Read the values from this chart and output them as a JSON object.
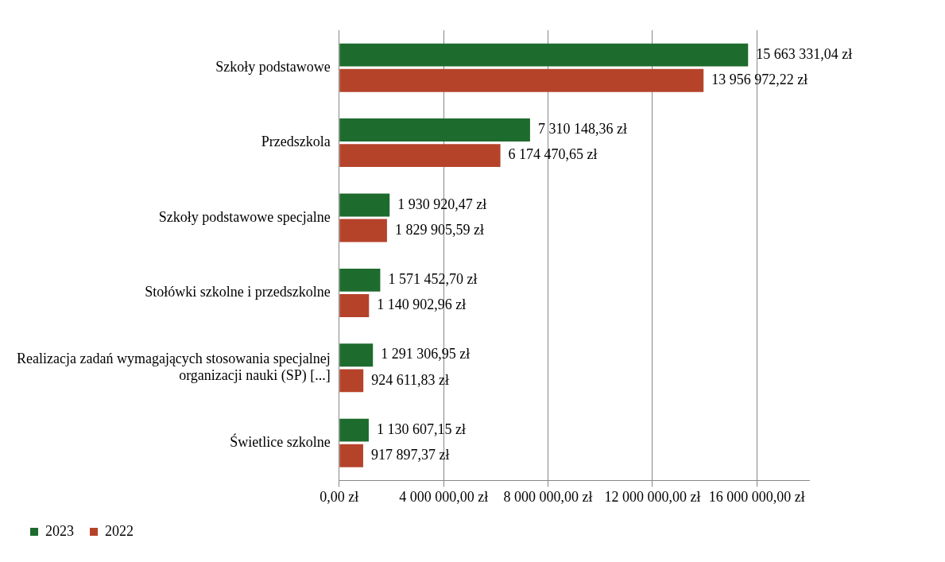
{
  "chart_data": {
    "type": "bar",
    "orientation": "horizontal",
    "categories": [
      "Szkoły podstawowe",
      "Przedszkola",
      "Szkoły podstawowe specjalne",
      "Stołówki szkolne i przedszkolne",
      "Realizacja zadań wymagających stosowania specjalnej organizacji nauki (SP) [...]",
      "Świetlice szkolne"
    ],
    "series": [
      {
        "name": "2023",
        "color": "#1e6b2e",
        "values": [
          15663331.04,
          7310148.36,
          1930920.47,
          1571452.7,
          1291306.95,
          1130607.15
        ],
        "value_labels": [
          "15 663 331,04 zł",
          "7 310 148,36 zł",
          "1 930 920,47 zł",
          "1 571 452,70 zł",
          "1 291 306,95 zł",
          "1 130 607,15 zł"
        ]
      },
      {
        "name": "2022",
        "color": "#b5432a",
        "values": [
          13956972.22,
          6174470.65,
          1829905.59,
          1140902.96,
          924611.83,
          917897.37
        ],
        "value_labels": [
          "13 956 972,22 zł",
          "6 174 470,65 zł",
          "1 829 905,59 zł",
          "1 140 902,96 zł",
          "924 611,83 zł",
          "917 897,37 zł"
        ]
      }
    ],
    "xlim": [
      0,
      18000000
    ],
    "xticks": [
      {
        "value": 0,
        "label": "0,00 zł"
      },
      {
        "value": 4000000,
        "label": "4 000 000,00 zł"
      },
      {
        "value": 8000000,
        "label": "8 000 000,00 zł"
      },
      {
        "value": 12000000,
        "label": "12 000 000,00 zł"
      },
      {
        "value": 16000000,
        "label": "16 000 000,00 zł"
      }
    ],
    "grid": "x",
    "legend": "bottom left"
  }
}
